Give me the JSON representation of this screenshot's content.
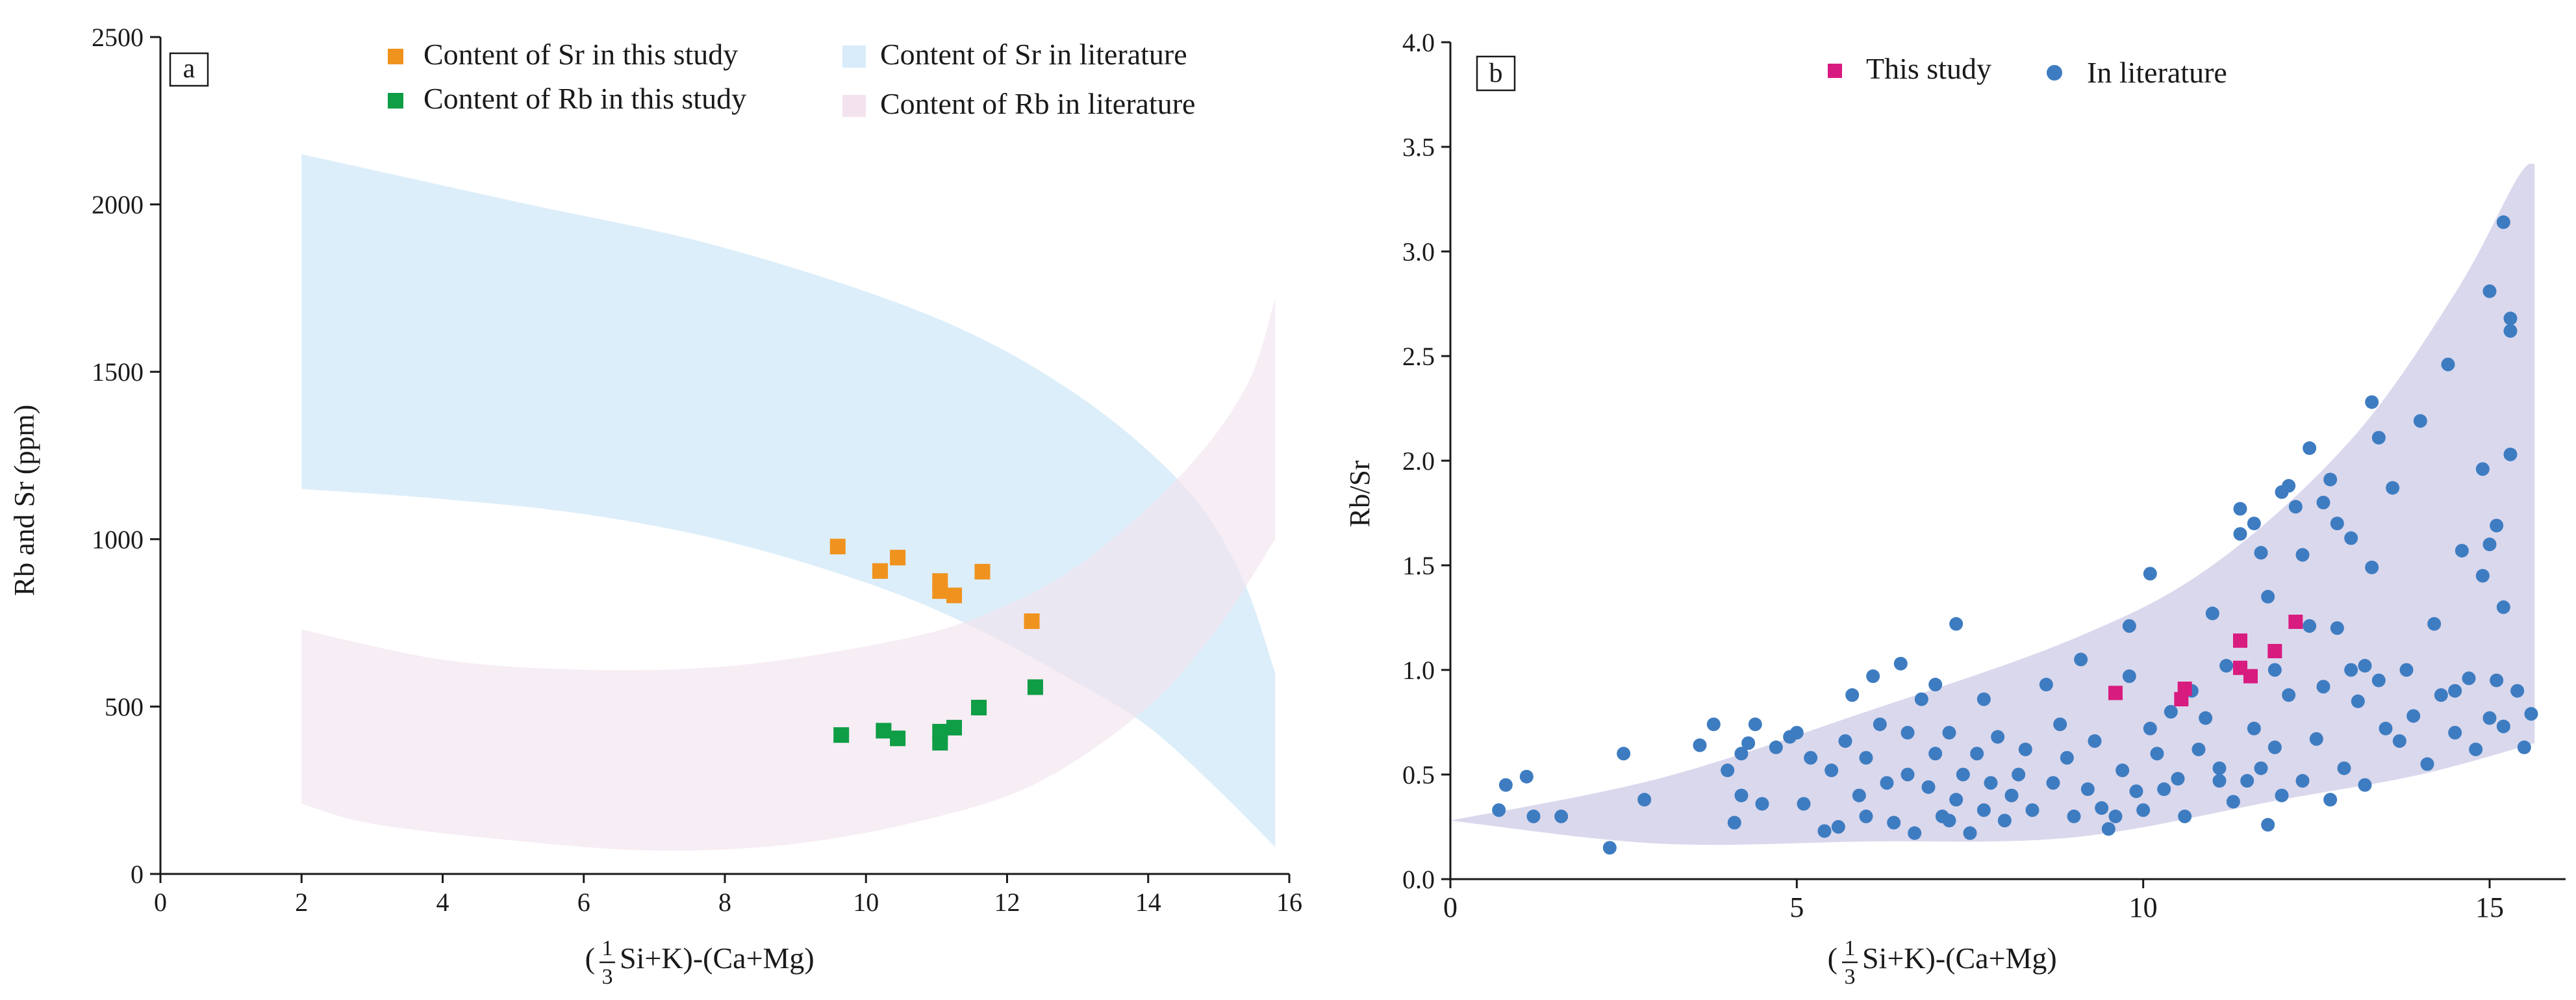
{
  "colors": {
    "sr_this_study": "#F0921E",
    "rb_this_study": "#0F9D46",
    "sr_literature_band": "#D8ECFA",
    "rb_literature_band": "#F3E3EE",
    "this_study_b": "#D81B7F",
    "literature_points": "#3E7CC1",
    "literature_band_b": "#D8D6EC"
  },
  "chart_data": [
    {
      "panel": "a",
      "type": "scatter",
      "panel_label": "a",
      "xlabel_prefix": "(",
      "xlabel_frac_num": "1",
      "xlabel_frac_den": "3",
      "xlabel_suffix": "Si+K)-(Ca+Mg)",
      "ylabel": "Rb and Sr (ppm)",
      "xlim": [
        0,
        16
      ],
      "ylim": [
        0,
        2500
      ],
      "xticks": [
        "0",
        "2",
        "4",
        "6",
        "8",
        "10",
        "12",
        "14",
        "16"
      ],
      "yticks": [
        "0",
        "500",
        "1000",
        "1500",
        "2000",
        "2500"
      ],
      "legend": [
        "Content of Sr in this study",
        "Content of Sr in literature",
        "Content of Rb in this study",
        "Content of Rb in literature"
      ],
      "series": [
        {
          "name": "Content of Sr in this study",
          "marker": "square",
          "points": [
            [
              9.6,
              978
            ],
            [
              10.2,
              905
            ],
            [
              10.45,
              945
            ],
            [
              11.05,
              875
            ],
            [
              11.05,
              845
            ],
            [
              11.25,
              832
            ],
            [
              11.65,
              903
            ],
            [
              12.35,
              755
            ]
          ]
        },
        {
          "name": "Content of Rb in this study",
          "marker": "square",
          "points": [
            [
              9.65,
              415
            ],
            [
              10.25,
              428
            ],
            [
              10.45,
              405
            ],
            [
              11.05,
              392
            ],
            [
              11.05,
              425
            ],
            [
              11.25,
              437
            ],
            [
              11.6,
              497
            ],
            [
              12.4,
              558
            ]
          ]
        }
      ],
      "bands": [
        {
          "name": "Content of Sr in literature",
          "upper": [
            [
              2,
              2150
            ],
            [
              5,
              2010
            ],
            [
              8,
              1870
            ],
            [
              11,
              1660
            ],
            [
              13,
              1430
            ],
            [
              14.5,
              1160
            ],
            [
              15.3,
              900
            ],
            [
              15.8,
              600
            ]
          ],
          "lower": [
            [
              2,
              1150
            ],
            [
              4,
              1120
            ],
            [
              6,
              1075
            ],
            [
              8,
              995
            ],
            [
              10,
              870
            ],
            [
              11.5,
              740
            ],
            [
              13,
              570
            ],
            [
              14,
              440
            ],
            [
              15,
              250
            ],
            [
              15.8,
              80
            ]
          ]
        },
        {
          "name": "Content of Rb in literature",
          "upper": [
            [
              2,
              730
            ],
            [
              4,
              640
            ],
            [
              6,
              610
            ],
            [
              8,
              620
            ],
            [
              10,
              680
            ],
            [
              11.5,
              760
            ],
            [
              13,
              920
            ],
            [
              14.5,
              1200
            ],
            [
              15.4,
              1460
            ],
            [
              15.8,
              1720
            ]
          ],
          "lower": [
            [
              2,
              210
            ],
            [
              3,
              150
            ],
            [
              5,
              100
            ],
            [
              7,
              70
            ],
            [
              9,
              90
            ],
            [
              11,
              170
            ],
            [
              12.5,
              280
            ],
            [
              14,
              500
            ],
            [
              15,
              740
            ],
            [
              15.8,
              1000
            ]
          ]
        }
      ]
    },
    {
      "panel": "b",
      "type": "scatter",
      "panel_label": "b",
      "xlabel_prefix": "(",
      "xlabel_frac_num": "1",
      "xlabel_frac_den": "3",
      "xlabel_suffix": "Si+K)-(Ca+Mg)",
      "ylabel": "Rb/Sr",
      "xlim": [
        0,
        15.8
      ],
      "ylim": [
        0,
        4.0
      ],
      "xticks": [
        "0",
        "5",
        "10",
        "15"
      ],
      "yticks": [
        "0.0",
        "0.5",
        "1.0",
        "1.5",
        "2.0",
        "2.5",
        "3.0",
        "3.5",
        "4.0"
      ],
      "legend": [
        "This study",
        "In literature"
      ],
      "band": {
        "name": "In literature range",
        "upper": [
          [
            0,
            0.28
          ],
          [
            3,
            0.48
          ],
          [
            6,
            0.8
          ],
          [
            9,
            1.15
          ],
          [
            11,
            1.5
          ],
          [
            13,
            2.1
          ],
          [
            14.5,
            2.8
          ],
          [
            15.4,
            3.35
          ],
          [
            15.65,
            3.42
          ]
        ],
        "lower": [
          [
            15.65,
            0.65
          ],
          [
            14,
            0.5
          ],
          [
            12,
            0.38
          ],
          [
            9,
            0.2
          ],
          [
            6,
            0.18
          ],
          [
            3,
            0.17
          ],
          [
            0,
            0.28
          ]
        ]
      },
      "series": [
        {
          "name": "This study",
          "marker": "square",
          "points": [
            [
              9.6,
              0.89
            ],
            [
              10.55,
              0.86
            ],
            [
              10.6,
              0.91
            ],
            [
              11.4,
              1.14
            ],
            [
              11.4,
              1.01
            ],
            [
              11.55,
              0.97
            ],
            [
              11.9,
              1.09
            ],
            [
              12.2,
              1.23
            ]
          ]
        },
        {
          "name": "In literature",
          "marker": "circle",
          "points": [
            [
              0.7,
              0.33
            ],
            [
              0.8,
              0.45
            ],
            [
              1.1,
              0.49
            ],
            [
              1.2,
              0.3
            ],
            [
              1.6,
              0.3
            ],
            [
              2.3,
              0.15
            ],
            [
              2.5,
              0.6
            ],
            [
              2.8,
              0.38
            ],
            [
              3.6,
              0.64
            ],
            [
              3.8,
              0.74
            ],
            [
              4.0,
              0.52
            ],
            [
              4.1,
              0.27
            ],
            [
              4.2,
              0.4
            ],
            [
              4.2,
              0.6
            ],
            [
              4.3,
              0.65
            ],
            [
              4.4,
              0.74
            ],
            [
              4.5,
              0.36
            ],
            [
              4.7,
              0.63
            ],
            [
              4.9,
              0.68
            ],
            [
              5.0,
              0.7
            ],
            [
              5.1,
              0.36
            ],
            [
              5.2,
              0.58
            ],
            [
              5.4,
              0.23
            ],
            [
              5.5,
              0.52
            ],
            [
              5.6,
              0.25
            ],
            [
              5.7,
              0.66
            ],
            [
              5.8,
              0.88
            ],
            [
              5.9,
              0.4
            ],
            [
              6.0,
              0.58
            ],
            [
              6.0,
              0.3
            ],
            [
              6.1,
              0.97
            ],
            [
              6.2,
              0.74
            ],
            [
              6.3,
              0.46
            ],
            [
              6.4,
              0.27
            ],
            [
              6.5,
              1.03
            ],
            [
              6.6,
              0.5
            ],
            [
              6.6,
              0.7
            ],
            [
              6.7,
              0.22
            ],
            [
              6.8,
              0.86
            ],
            [
              6.9,
              0.44
            ],
            [
              7.0,
              0.93
            ],
            [
              7.0,
              0.6
            ],
            [
              7.1,
              0.3
            ],
            [
              7.2,
              0.28
            ],
            [
              7.2,
              0.7
            ],
            [
              7.3,
              1.22
            ],
            [
              7.3,
              0.38
            ],
            [
              7.4,
              0.5
            ],
            [
              7.5,
              0.22
            ],
            [
              7.6,
              0.6
            ],
            [
              7.7,
              0.33
            ],
            [
              7.7,
              0.86
            ],
            [
              7.8,
              0.46
            ],
            [
              7.9,
              0.68
            ],
            [
              8.0,
              0.28
            ],
            [
              8.1,
              0.4
            ],
            [
              8.2,
              0.5
            ],
            [
              8.3,
              0.62
            ],
            [
              8.4,
              0.33
            ],
            [
              8.6,
              0.93
            ],
            [
              8.7,
              0.46
            ],
            [
              8.8,
              0.74
            ],
            [
              8.9,
              0.58
            ],
            [
              9.0,
              0.3
            ],
            [
              9.1,
              1.05
            ],
            [
              9.2,
              0.43
            ],
            [
              9.3,
              0.66
            ],
            [
              9.4,
              0.34
            ],
            [
              9.5,
              0.24
            ],
            [
              9.6,
              0.3
            ],
            [
              9.7,
              0.52
            ],
            [
              9.8,
              0.97
            ],
            [
              9.8,
              1.21
            ],
            [
              9.9,
              0.42
            ],
            [
              10.0,
              0.33
            ],
            [
              10.1,
              1.46
            ],
            [
              10.1,
              0.72
            ],
            [
              10.2,
              0.6
            ],
            [
              10.3,
              0.43
            ],
            [
              10.4,
              0.8
            ],
            [
              10.5,
              0.48
            ],
            [
              10.6,
              0.3
            ],
            [
              10.7,
              0.9
            ],
            [
              10.8,
              0.62
            ],
            [
              10.9,
              0.77
            ],
            [
              11.0,
              1.27
            ],
            [
              11.1,
              0.47
            ],
            [
              11.1,
              0.53
            ],
            [
              11.2,
              1.02
            ],
            [
              11.3,
              0.37
            ],
            [
              11.4,
              1.65
            ],
            [
              11.4,
              1.77
            ],
            [
              11.5,
              0.47
            ],
            [
              11.6,
              0.72
            ],
            [
              11.6,
              1.7
            ],
            [
              11.7,
              0.53
            ],
            [
              11.7,
              1.56
            ],
            [
              11.8,
              1.35
            ],
            [
              11.8,
              0.26
            ],
            [
              11.9,
              1.0
            ],
            [
              11.9,
              0.63
            ],
            [
              12.0,
              1.85
            ],
            [
              12.0,
              0.4
            ],
            [
              12.1,
              1.88
            ],
            [
              12.1,
              0.88
            ],
            [
              12.2,
              1.78
            ],
            [
              12.3,
              1.55
            ],
            [
              12.3,
              0.47
            ],
            [
              12.4,
              2.06
            ],
            [
              12.4,
              1.21
            ],
            [
              12.5,
              0.67
            ],
            [
              12.6,
              1.8
            ],
            [
              12.6,
              0.92
            ],
            [
              12.7,
              1.91
            ],
            [
              12.7,
              0.38
            ],
            [
              12.8,
              1.2
            ],
            [
              12.8,
              1.7
            ],
            [
              12.9,
              0.53
            ],
            [
              13.0,
              1.63
            ],
            [
              13.0,
              1.0
            ],
            [
              13.1,
              0.85
            ],
            [
              13.2,
              0.45
            ],
            [
              13.2,
              1.02
            ],
            [
              13.3,
              2.28
            ],
            [
              13.3,
              1.49
            ],
            [
              13.4,
              2.11
            ],
            [
              13.4,
              0.95
            ],
            [
              13.5,
              0.72
            ],
            [
              13.6,
              1.87
            ],
            [
              13.7,
              0.66
            ],
            [
              13.8,
              1.0
            ],
            [
              13.9,
              0.78
            ],
            [
              14.0,
              2.19
            ],
            [
              14.1,
              0.55
            ],
            [
              14.2,
              1.22
            ],
            [
              14.3,
              0.88
            ],
            [
              14.4,
              2.46
            ],
            [
              14.5,
              0.7
            ],
            [
              14.5,
              0.9
            ],
            [
              14.6,
              1.57
            ],
            [
              14.7,
              0.96
            ],
            [
              14.8,
              0.62
            ],
            [
              14.9,
              1.96
            ],
            [
              14.9,
              1.45
            ],
            [
              15.0,
              1.6
            ],
            [
              15.0,
              0.77
            ],
            [
              15.1,
              1.69
            ],
            [
              15.1,
              0.95
            ],
            [
              15.2,
              3.14
            ],
            [
              15.2,
              1.3
            ],
            [
              15.3,
              2.68
            ],
            [
              15.3,
              2.62
            ],
            [
              15.3,
              2.03
            ],
            [
              15.4,
              0.9
            ],
            [
              15.5,
              0.63
            ],
            [
              15.6,
              0.79
            ],
            [
              15.0,
              2.81
            ],
            [
              15.2,
              0.73
            ]
          ]
        }
      ]
    }
  ]
}
